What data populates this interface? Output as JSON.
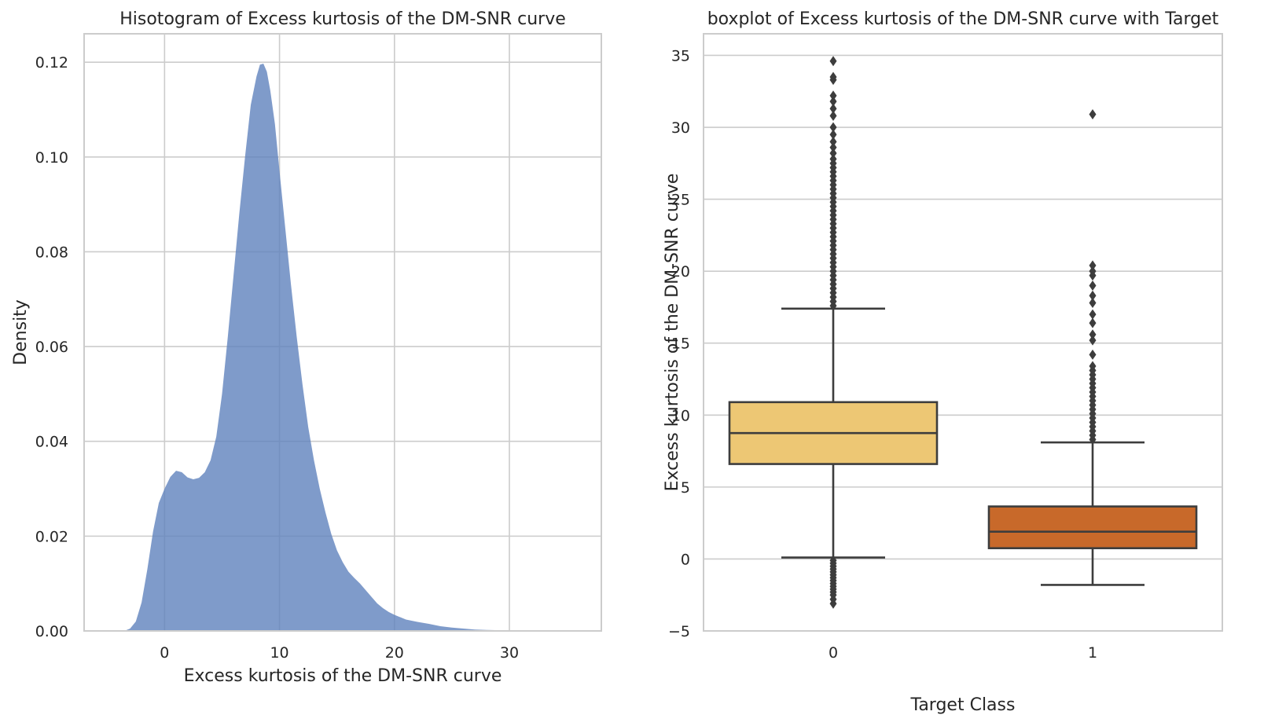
{
  "colors": {
    "kde_fill": "#5f82bd",
    "box_class0": "#edc774",
    "box_class1": "#c8692a",
    "box_line": "#3d3d3d",
    "grid": "#cccccc",
    "spine": "#cccccc"
  },
  "chart_data": [
    {
      "type": "area",
      "title": "Hisotogram of Excess kurtosis of the DM-SNR curve",
      "xlabel": "Excess kurtosis of the DM-SNR curve",
      "ylabel": "Density",
      "xlim": [
        -7,
        38
      ],
      "ylim": [
        0,
        0.126
      ],
      "xticks": [
        0,
        10,
        20,
        30
      ],
      "yticks": [
        0.0,
        0.02,
        0.04,
        0.06,
        0.08,
        0.1,
        0.12
      ],
      "ytick_labels": [
        "0.00",
        "0.02",
        "0.04",
        "0.06",
        "0.08",
        "0.10",
        "0.12"
      ],
      "grid": true,
      "fill_opacity": 0.8,
      "x": [
        -4.8,
        -3.5,
        -3,
        -2.5,
        -2,
        -1.5,
        -1,
        -0.5,
        0,
        0.5,
        1,
        1.5,
        2,
        2.5,
        3,
        3.5,
        4,
        4.5,
        5,
        5.5,
        6,
        6.5,
        7,
        7.5,
        8,
        8.3,
        8.6,
        8.9,
        9.2,
        9.6,
        10,
        10.5,
        11,
        11.5,
        12,
        12.5,
        13,
        13.5,
        14,
        14.5,
        15,
        15.5,
        16,
        16.5,
        17,
        17.5,
        18,
        18.5,
        19,
        19.5,
        20,
        21,
        22,
        23,
        24,
        25,
        26,
        27,
        28,
        30,
        32,
        34,
        36
      ],
      "y": [
        0,
        0,
        0.0005,
        0.002,
        0.006,
        0.013,
        0.021,
        0.027,
        0.03,
        0.0325,
        0.0338,
        0.0335,
        0.0324,
        0.032,
        0.0323,
        0.0335,
        0.036,
        0.041,
        0.05,
        0.062,
        0.075,
        0.088,
        0.1,
        0.111,
        0.117,
        0.1195,
        0.1197,
        0.118,
        0.114,
        0.107,
        0.097,
        0.085,
        0.073,
        0.062,
        0.052,
        0.043,
        0.036,
        0.03,
        0.025,
        0.0205,
        0.017,
        0.0145,
        0.0125,
        0.0112,
        0.01,
        0.0086,
        0.0072,
        0.0058,
        0.0048,
        0.004,
        0.0034,
        0.0024,
        0.0019,
        0.0015,
        0.001,
        0.0007,
        0.0005,
        0.0003,
        0.0002,
        0.0001,
        5e-05,
        2e-05,
        0
      ]
    },
    {
      "type": "box",
      "title": "boxplot of Excess kurtosis of the DM-SNR curve with Target",
      "xlabel": "Target Class",
      "ylabel": "Excess kurtosis of the DM-SNR curve",
      "ylim": [
        -5,
        36.5
      ],
      "yticks": [
        -5,
        0,
        5,
        10,
        15,
        20,
        25,
        30,
        35
      ],
      "ytick_labels": [
        "−5",
        "0",
        "5",
        "10",
        "15",
        "20",
        "25",
        "30",
        "35"
      ],
      "categories": [
        "0",
        "1"
      ],
      "grid": true,
      "boxes": [
        {
          "category": "0",
          "q1": 6.6,
          "median": 8.75,
          "q3": 10.9,
          "whisker_low": 0.1,
          "whisker_high": 17.4,
          "outliers": [
            -0.1,
            -0.3,
            -0.5,
            -0.7,
            -0.9,
            -1.1,
            -1.3,
            -1.5,
            -1.7,
            -1.9,
            -2.1,
            -2.3,
            -2.5,
            -2.8,
            -3.1,
            17.6,
            17.9,
            18.2,
            18.5,
            18.8,
            19.1,
            19.4,
            19.7,
            20.0,
            20.3,
            20.6,
            20.9,
            21.2,
            21.5,
            21.8,
            22.1,
            22.4,
            22.7,
            23.0,
            23.3,
            23.6,
            23.9,
            24.2,
            24.5,
            24.8,
            25.1,
            25.4,
            25.7,
            26.0,
            26.3,
            26.6,
            26.9,
            27.2,
            27.5,
            27.8,
            28.2,
            28.6,
            29.0,
            29.5,
            30.0,
            30.8,
            31.3,
            31.8,
            32.2,
            33.3,
            33.5,
            34.6
          ]
        },
        {
          "category": "1",
          "q1": 0.75,
          "median": 1.9,
          "q3": 3.65,
          "whisker_low": -1.8,
          "whisker_high": 8.1,
          "outliers": [
            8.3,
            8.6,
            8.9,
            9.2,
            9.5,
            9.8,
            10.1,
            10.4,
            10.7,
            11.0,
            11.3,
            11.6,
            11.9,
            12.2,
            12.5,
            12.8,
            13.1,
            13.4,
            14.2,
            15.2,
            15.6,
            16.4,
            17.0,
            17.8,
            18.3,
            19.0,
            19.7,
            20.0,
            20.4,
            30.9
          ]
        }
      ]
    }
  ]
}
